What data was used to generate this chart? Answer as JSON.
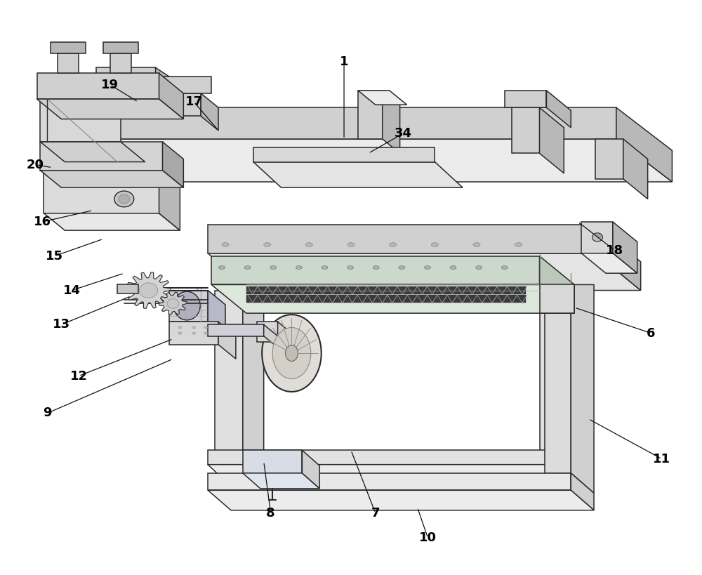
{
  "background_color": "#ffffff",
  "line_color": "#2a2a2a",
  "fig_width": 10.0,
  "fig_height": 8.19,
  "label_defs": {
    "1": {
      "lpos": [
        0.49,
        0.895
      ],
      "aend": [
        0.49,
        0.76
      ]
    },
    "6": {
      "lpos": [
        0.93,
        0.42
      ],
      "aend": [
        0.82,
        0.465
      ]
    },
    "7": {
      "lpos": [
        0.535,
        0.105
      ],
      "aend": [
        0.5,
        0.215
      ]
    },
    "8": {
      "lpos": [
        0.385,
        0.105
      ],
      "aend": [
        0.375,
        0.195
      ]
    },
    "9": {
      "lpos": [
        0.065,
        0.28
      ],
      "aend": [
        0.245,
        0.375
      ]
    },
    "10": {
      "lpos": [
        0.61,
        0.062
      ],
      "aend": [
        0.595,
        0.115
      ]
    },
    "11": {
      "lpos": [
        0.945,
        0.2
      ],
      "aend": [
        0.84,
        0.27
      ]
    },
    "12": {
      "lpos": [
        0.11,
        0.345
      ],
      "aend": [
        0.245,
        0.41
      ]
    },
    "13": {
      "lpos": [
        0.085,
        0.435
      ],
      "aend": [
        0.185,
        0.485
      ]
    },
    "14": {
      "lpos": [
        0.1,
        0.495
      ],
      "aend": [
        0.175,
        0.525
      ]
    },
    "15": {
      "lpos": [
        0.075,
        0.555
      ],
      "aend": [
        0.145,
        0.585
      ]
    },
    "16": {
      "lpos": [
        0.058,
        0.615
      ],
      "aend": [
        0.13,
        0.635
      ]
    },
    "17": {
      "lpos": [
        0.275,
        0.825
      ],
      "aend": [
        0.31,
        0.775
      ]
    },
    "18": {
      "lpos": [
        0.878,
        0.565
      ],
      "aend": [
        0.825,
        0.615
      ]
    },
    "19": {
      "lpos": [
        0.155,
        0.855
      ],
      "aend": [
        0.195,
        0.825
      ]
    },
    "20": {
      "lpos": [
        0.048,
        0.715
      ],
      "aend": [
        0.072,
        0.71
      ]
    },
    "34": {
      "lpos": [
        0.575,
        0.77
      ],
      "aend": [
        0.525,
        0.735
      ]
    }
  }
}
